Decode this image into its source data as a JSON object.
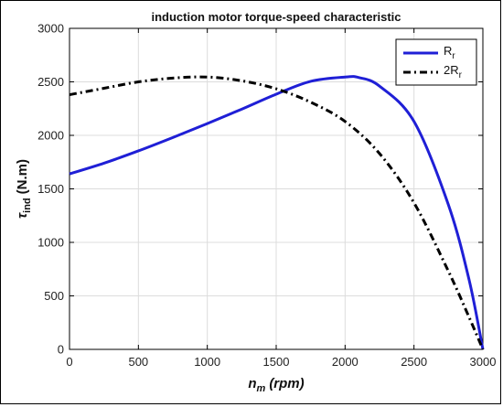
{
  "chart_data": {
    "type": "line",
    "title": "induction motor torque-speed characteristic",
    "xlabel": {
      "main": "n",
      "sub": "m",
      "unit": "(rpm)"
    },
    "ylabel": {
      "main": "τ",
      "sub": "ind",
      "unit": "(N.m)"
    },
    "xlim": [
      0,
      3000
    ],
    "ylim": [
      0,
      3000
    ],
    "xticks": [
      0,
      500,
      1000,
      1500,
      2000,
      2500,
      3000
    ],
    "yticks": [
      0,
      500,
      1000,
      1500,
      2000,
      2500,
      3000
    ],
    "grid": true,
    "legend_position": "top-right",
    "series": [
      {
        "name": "R",
        "name_sub": "r",
        "color": "#1f1fd6",
        "style": "solid",
        "x": [
          0,
          250,
          500,
          750,
          1000,
          1250,
          1500,
          1750,
          2000,
          2100,
          2250,
          2500,
          2750,
          2900,
          3000
        ],
        "y": [
          1640,
          1740,
          1855,
          1980,
          2110,
          2245,
          2385,
          2505,
          2545,
          2540,
          2460,
          2130,
          1350,
          650,
          0
        ]
      },
      {
        "name": "2R",
        "name_sub": "r",
        "color": "#000000",
        "style": "dashdot",
        "x": [
          0,
          250,
          500,
          750,
          1000,
          1250,
          1500,
          1750,
          2000,
          2250,
          2500,
          2750,
          2900,
          3000
        ],
        "y": [
          2380,
          2440,
          2500,
          2535,
          2545,
          2510,
          2435,
          2310,
          2130,
          1830,
          1370,
          730,
          300,
          0
        ]
      }
    ]
  }
}
